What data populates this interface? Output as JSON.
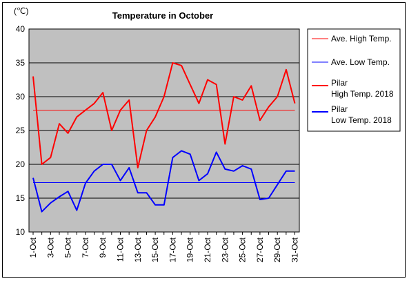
{
  "chart_data": {
    "type": "line",
    "title": "Temperature in October",
    "unit_label": "(℃)",
    "ylim": [
      10,
      40
    ],
    "yticks": [
      10,
      15,
      20,
      25,
      30,
      35,
      40
    ],
    "x_tick_labels": [
      "1-Oct",
      "3-Oct",
      "5-Oct",
      "7-Oct",
      "9-Oct",
      "11-Oct",
      "13-Oct",
      "15-Oct",
      "17-Oct",
      "19-Oct",
      "21-Oct",
      "23-Oct",
      "25-Oct",
      "27-Oct",
      "29-Oct",
      "31-Oct"
    ],
    "days": [
      1,
      2,
      3,
      4,
      5,
      6,
      7,
      8,
      9,
      10,
      11,
      12,
      13,
      14,
      15,
      16,
      17,
      18,
      19,
      20,
      21,
      22,
      23,
      24,
      25,
      26,
      27,
      28,
      29,
      30,
      31
    ],
    "grid": true,
    "legend_position": "right",
    "plot_background": "#c0c0c0",
    "series": [
      {
        "name": "Ave. High Temp.",
        "color": "#ff0000",
        "style": "thin",
        "values": [
          28,
          28,
          28,
          28,
          28,
          28,
          28,
          28,
          28,
          28,
          28,
          28,
          28,
          28,
          28,
          28,
          28,
          28,
          28,
          28,
          28,
          28,
          28,
          28,
          28,
          28,
          28,
          28,
          28,
          28,
          28
        ]
      },
      {
        "name": "Ave. Low Temp.",
        "color": "#0000ff",
        "style": "thin",
        "values": [
          17.3,
          17.3,
          17.3,
          17.3,
          17.3,
          17.3,
          17.3,
          17.3,
          17.3,
          17.3,
          17.3,
          17.3,
          17.3,
          17.3,
          17.3,
          17.3,
          17.3,
          17.3,
          17.3,
          17.3,
          17.3,
          17.3,
          17.3,
          17.3,
          17.3,
          17.3,
          17.3,
          17.3,
          17.3,
          17.3,
          17.3
        ]
      },
      {
        "name": "Pilar\nHigh Temp. 2018",
        "color": "#ff0000",
        "style": "thick",
        "values": [
          33,
          20,
          21,
          26,
          24.6,
          27,
          28,
          29,
          30.6,
          25,
          28,
          29.5,
          19.5,
          25,
          27,
          30,
          35,
          34.6,
          31.8,
          29,
          32.5,
          31.8,
          23,
          30,
          29.5,
          31.6,
          26.5,
          28.5,
          30,
          34,
          29
        ]
      },
      {
        "name": "Pilar\nLow Temp. 2018",
        "color": "#0000ff",
        "style": "thick",
        "values": [
          18,
          13,
          14.3,
          15.2,
          16,
          13.2,
          17.2,
          19,
          20,
          20,
          17.6,
          19.5,
          15.8,
          15.8,
          14,
          14,
          21,
          22,
          21.5,
          17.6,
          18.6,
          21.8,
          19.3,
          19,
          19.8,
          19.3,
          14.8,
          15,
          17,
          19,
          19
        ]
      }
    ]
  }
}
